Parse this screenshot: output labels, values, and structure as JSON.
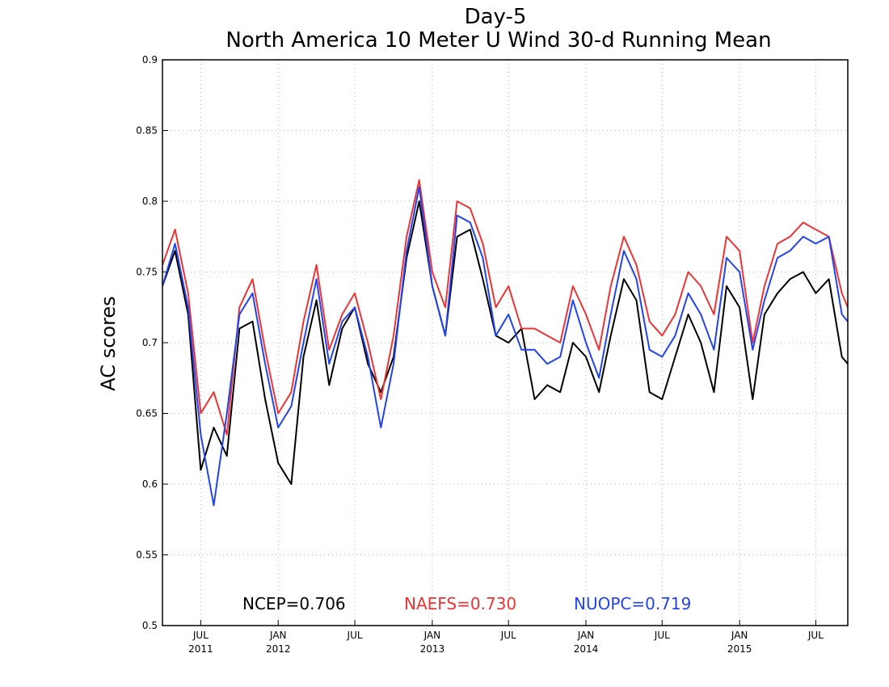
{
  "chart_data": {
    "type": "line",
    "title": "Day-5",
    "subtitle": "North America 10 Meter U Wind 30-d Running Mean",
    "ylabel": "AC scores",
    "xlabel": "",
    "ylim": [
      0.5,
      0.9
    ],
    "xlim": [
      "2011-04-01",
      "2015-09-15"
    ],
    "y_ticks": [
      "0.5",
      "0.55",
      "0.6",
      "0.65",
      "0.7",
      "0.75",
      "0.8",
      "0.85",
      "0.9"
    ],
    "x_ticks": [
      {
        "date": "2011-07-01",
        "label": "JUL",
        "year": "2011"
      },
      {
        "date": "2012-01-01",
        "label": "JAN",
        "year": "2012"
      },
      {
        "date": "2012-07-01",
        "label": "JUL",
        "year": ""
      },
      {
        "date": "2013-01-01",
        "label": "JAN",
        "year": "2013"
      },
      {
        "date": "2013-07-01",
        "label": "JUL",
        "year": ""
      },
      {
        "date": "2014-01-01",
        "label": "JAN",
        "year": "2014"
      },
      {
        "date": "2014-07-01",
        "label": "JUL",
        "year": ""
      },
      {
        "date": "2015-01-01",
        "label": "JAN",
        "year": "2015"
      },
      {
        "date": "2015-07-01",
        "label": "JUL",
        "year": ""
      }
    ],
    "grid": true,
    "legend_position": "bottom-center",
    "series": [
      {
        "name": "NCEP",
        "legend": "NCEP=0.706",
        "color": "#000000",
        "x": [
          "2011-04-01",
          "2011-05-01",
          "2011-06-01",
          "2011-07-01",
          "2011-08-01",
          "2011-09-01",
          "2011-10-01",
          "2011-11-01",
          "2011-12-01",
          "2012-01-01",
          "2012-02-01",
          "2012-03-01",
          "2012-04-01",
          "2012-05-01",
          "2012-06-01",
          "2012-07-01",
          "2012-08-01",
          "2012-09-01",
          "2012-10-01",
          "2012-11-01",
          "2012-12-01",
          "2013-01-01",
          "2013-02-01",
          "2013-03-01",
          "2013-04-01",
          "2013-05-01",
          "2013-06-01",
          "2013-07-01",
          "2013-08-01",
          "2013-09-01",
          "2013-10-01",
          "2013-11-01",
          "2013-12-01",
          "2014-01-01",
          "2014-02-01",
          "2014-03-01",
          "2014-04-01",
          "2014-05-01",
          "2014-06-01",
          "2014-07-01",
          "2014-08-01",
          "2014-09-01",
          "2014-10-01",
          "2014-11-01",
          "2014-12-01",
          "2015-01-01",
          "2015-02-01",
          "2015-03-01",
          "2015-04-01",
          "2015-05-01",
          "2015-06-01",
          "2015-07-01",
          "2015-08-01",
          "2015-09-01",
          "2015-09-15"
        ],
        "y": [
          0.74,
          0.765,
          0.72,
          0.61,
          0.64,
          0.62,
          0.71,
          0.715,
          0.66,
          0.615,
          0.6,
          0.69,
          0.73,
          0.67,
          0.71,
          0.725,
          0.685,
          0.665,
          0.69,
          0.76,
          0.8,
          0.74,
          0.705,
          0.775,
          0.78,
          0.745,
          0.705,
          0.7,
          0.71,
          0.66,
          0.67,
          0.665,
          0.7,
          0.69,
          0.665,
          0.705,
          0.745,
          0.73,
          0.665,
          0.66,
          0.69,
          0.72,
          0.7,
          0.665,
          0.74,
          0.725,
          0.66,
          0.72,
          0.735,
          0.745,
          0.75,
          0.735,
          0.745,
          0.69,
          0.685
        ]
      },
      {
        "name": "NAEFS",
        "legend": "NAEFS=0.730",
        "color": "#ee3333",
        "x": [
          "2011-04-01",
          "2011-05-01",
          "2011-06-01",
          "2011-07-01",
          "2011-08-01",
          "2011-09-01",
          "2011-10-01",
          "2011-11-01",
          "2011-12-01",
          "2012-01-01",
          "2012-02-01",
          "2012-03-01",
          "2012-04-01",
          "2012-05-01",
          "2012-06-01",
          "2012-07-01",
          "2012-08-01",
          "2012-09-01",
          "2012-10-01",
          "2012-11-01",
          "2012-12-01",
          "2013-01-01",
          "2013-02-01",
          "2013-03-01",
          "2013-04-01",
          "2013-05-01",
          "2013-06-01",
          "2013-07-01",
          "2013-08-01",
          "2013-09-01",
          "2013-10-01",
          "2013-11-01",
          "2013-12-01",
          "2014-01-01",
          "2014-02-01",
          "2014-03-01",
          "2014-04-01",
          "2014-05-01",
          "2014-06-01",
          "2014-07-01",
          "2014-08-01",
          "2014-09-01",
          "2014-10-01",
          "2014-11-01",
          "2014-12-01",
          "2015-01-01",
          "2015-02-01",
          "2015-03-01",
          "2015-04-01",
          "2015-05-01",
          "2015-06-01",
          "2015-07-01",
          "2015-08-01",
          "2015-09-01",
          "2015-09-15"
        ],
        "y": [
          0.755,
          0.78,
          0.735,
          0.65,
          0.665,
          0.635,
          0.725,
          0.745,
          0.695,
          0.65,
          0.665,
          0.715,
          0.755,
          0.695,
          0.72,
          0.735,
          0.7,
          0.66,
          0.705,
          0.775,
          0.815,
          0.75,
          0.725,
          0.8,
          0.795,
          0.77,
          0.725,
          0.74,
          0.71,
          0.71,
          0.705,
          0.7,
          0.74,
          0.72,
          0.695,
          0.74,
          0.775,
          0.755,
          0.715,
          0.705,
          0.72,
          0.75,
          0.74,
          0.72,
          0.775,
          0.765,
          0.7,
          0.74,
          0.77,
          0.775,
          0.785,
          0.78,
          0.775,
          0.735,
          0.725
        ]
      },
      {
        "name": "NUOPC",
        "legend": "NUOPC=0.719",
        "color": "#2244ee",
        "x": [
          "2011-04-01",
          "2011-05-01",
          "2011-06-01",
          "2011-07-01",
          "2011-08-01",
          "2011-09-01",
          "2011-10-01",
          "2011-11-01",
          "2011-12-01",
          "2012-01-01",
          "2012-02-01",
          "2012-03-01",
          "2012-04-01",
          "2012-05-01",
          "2012-06-01",
          "2012-07-01",
          "2012-08-01",
          "2012-09-01",
          "2012-10-01",
          "2012-11-01",
          "2012-12-01",
          "2013-01-01",
          "2013-02-01",
          "2013-03-01",
          "2013-04-01",
          "2013-05-01",
          "2013-06-01",
          "2013-07-01",
          "2013-08-01",
          "2013-09-01",
          "2013-10-01",
          "2013-11-01",
          "2013-12-01",
          "2014-01-01",
          "2014-02-01",
          "2014-03-01",
          "2014-04-01",
          "2014-05-01",
          "2014-06-01",
          "2014-07-01",
          "2014-08-01",
          "2014-09-01",
          "2014-10-01",
          "2014-11-01",
          "2014-12-01",
          "2015-01-01",
          "2015-02-01",
          "2015-03-01",
          "2015-04-01",
          "2015-05-01",
          "2015-06-01",
          "2015-07-01",
          "2015-08-01",
          "2015-09-01",
          "2015-09-15"
        ],
        "y": [
          0.74,
          0.77,
          0.725,
          0.635,
          0.585,
          0.65,
          0.72,
          0.735,
          0.685,
          0.64,
          0.655,
          0.7,
          0.745,
          0.685,
          0.715,
          0.725,
          0.69,
          0.64,
          0.685,
          0.765,
          0.81,
          0.74,
          0.705,
          0.79,
          0.785,
          0.76,
          0.705,
          0.72,
          0.695,
          0.695,
          0.685,
          0.69,
          0.73,
          0.7,
          0.675,
          0.72,
          0.765,
          0.745,
          0.695,
          0.69,
          0.705,
          0.735,
          0.72,
          0.695,
          0.76,
          0.75,
          0.695,
          0.73,
          0.76,
          0.765,
          0.775,
          0.77,
          0.775,
          0.72,
          0.715
        ]
      }
    ]
  }
}
